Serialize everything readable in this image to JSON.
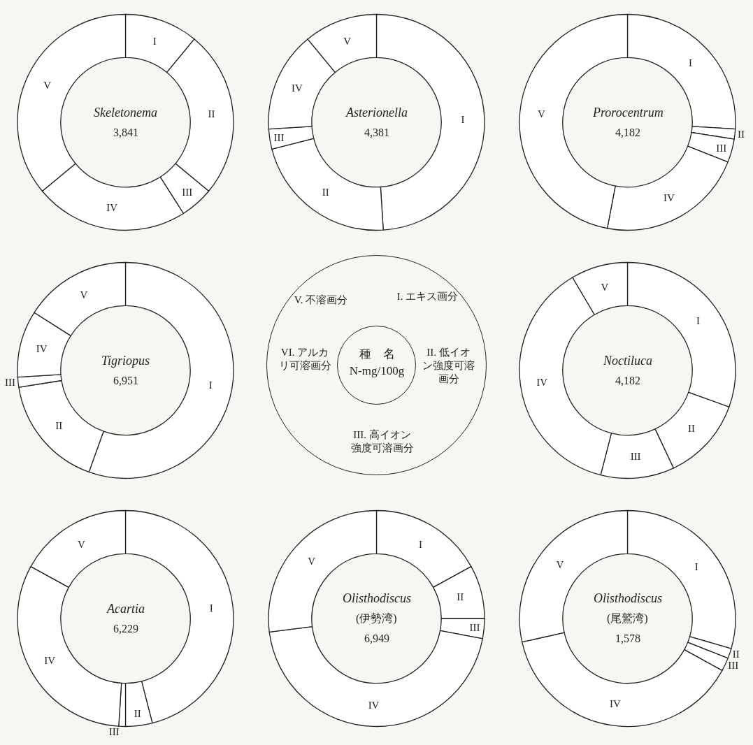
{
  "chart_data": [
    {
      "type": "donut",
      "title": "Skeletonema",
      "annotations": [
        "3,841"
      ],
      "categories": [
        "I",
        "II",
        "III",
        "IV",
        "V"
      ],
      "values": [
        11,
        25,
        5,
        23,
        36
      ],
      "colors": [
        "#ffffff",
        "#ffffff",
        "#ffffff",
        "#ffffff",
        "#ffffff"
      ]
    },
    {
      "type": "donut",
      "title": "Asterionella",
      "annotations": [
        "4,381"
      ],
      "categories": [
        "I",
        "II",
        "III",
        "IV",
        "V"
      ],
      "values": [
        49,
        22,
        3,
        15,
        11
      ],
      "colors": [
        "#ffffff",
        "#ffffff",
        "#ffffff",
        "#ffffff",
        "#ffffff"
      ]
    },
    {
      "type": "donut",
      "title": "Prorocentrum",
      "annotations": [
        "4,182"
      ],
      "categories": [
        "I",
        "II",
        "III",
        "IV",
        "V"
      ],
      "values": [
        26,
        1.5,
        3.5,
        22,
        47
      ],
      "colors": [
        "#ffffff",
        "#ffffff",
        "#ffffff",
        "#ffffff",
        "#ffffff"
      ]
    },
    {
      "type": "donut",
      "title": "Tigriopus",
      "annotations": [
        "6,951"
      ],
      "categories": [
        "I",
        "II",
        "III",
        "IV",
        "V"
      ],
      "values": [
        55.5,
        17,
        1.5,
        10,
        16
      ],
      "colors": [
        "#ffffff",
        "#ffffff",
        "#ffffff",
        "#ffffff",
        "#ffffff"
      ]
    },
    {
      "type": "other",
      "title": "種　名",
      "subtitle": "N-mg/100g",
      "annotations": [
        "I. エキス画分",
        "II. 低イオン強度可溶画分",
        "III. 高イオン強度可溶画分",
        "VI. アルカリ可溶画分",
        "V. 不溶画分"
      ]
    },
    {
      "type": "donut",
      "title": "Noctiluca",
      "annotations": [
        "4,182"
      ],
      "categories": [
        "I",
        "II",
        "III",
        "IV",
        "V"
      ],
      "values": [
        30.5,
        12.5,
        11,
        37.5,
        8.5
      ],
      "colors": [
        "#ffffff",
        "#ffffff",
        "#ffffff",
        "#ffffff",
        "#ffffff"
      ]
    },
    {
      "type": "donut",
      "title": "Acartia",
      "annotations": [
        "6,229"
      ],
      "categories": [
        "I",
        "II",
        "III",
        "IV",
        "V"
      ],
      "values": [
        46,
        4,
        1,
        32,
        17
      ],
      "colors": [
        "#ffffff",
        "#ffffff",
        "#ffffff",
        "#ffffff",
        "#ffffff"
      ]
    },
    {
      "type": "donut",
      "title": "Olisthodiscus",
      "annotations": [
        "(伊勢湾)",
        "6,949"
      ],
      "categories": [
        "I",
        "II",
        "III",
        "IV",
        "V"
      ],
      "values": [
        17,
        8,
        3,
        45,
        27
      ],
      "colors": [
        "#ffffff",
        "#ffffff",
        "#ffffff",
        "#ffffff",
        "#ffffff"
      ]
    },
    {
      "type": "donut",
      "title": "Olisthodiscus",
      "annotations": [
        "(尾鷲湾)",
        "1,578"
      ],
      "categories": [
        "I",
        "II",
        "III",
        "IV",
        "V"
      ],
      "values": [
        29.5,
        1.5,
        2,
        38.5,
        28.5
      ],
      "colors": [
        "#ffffff",
        "#ffffff",
        "#ffffff",
        "#ffffff",
        "#ffffff"
      ]
    }
  ]
}
